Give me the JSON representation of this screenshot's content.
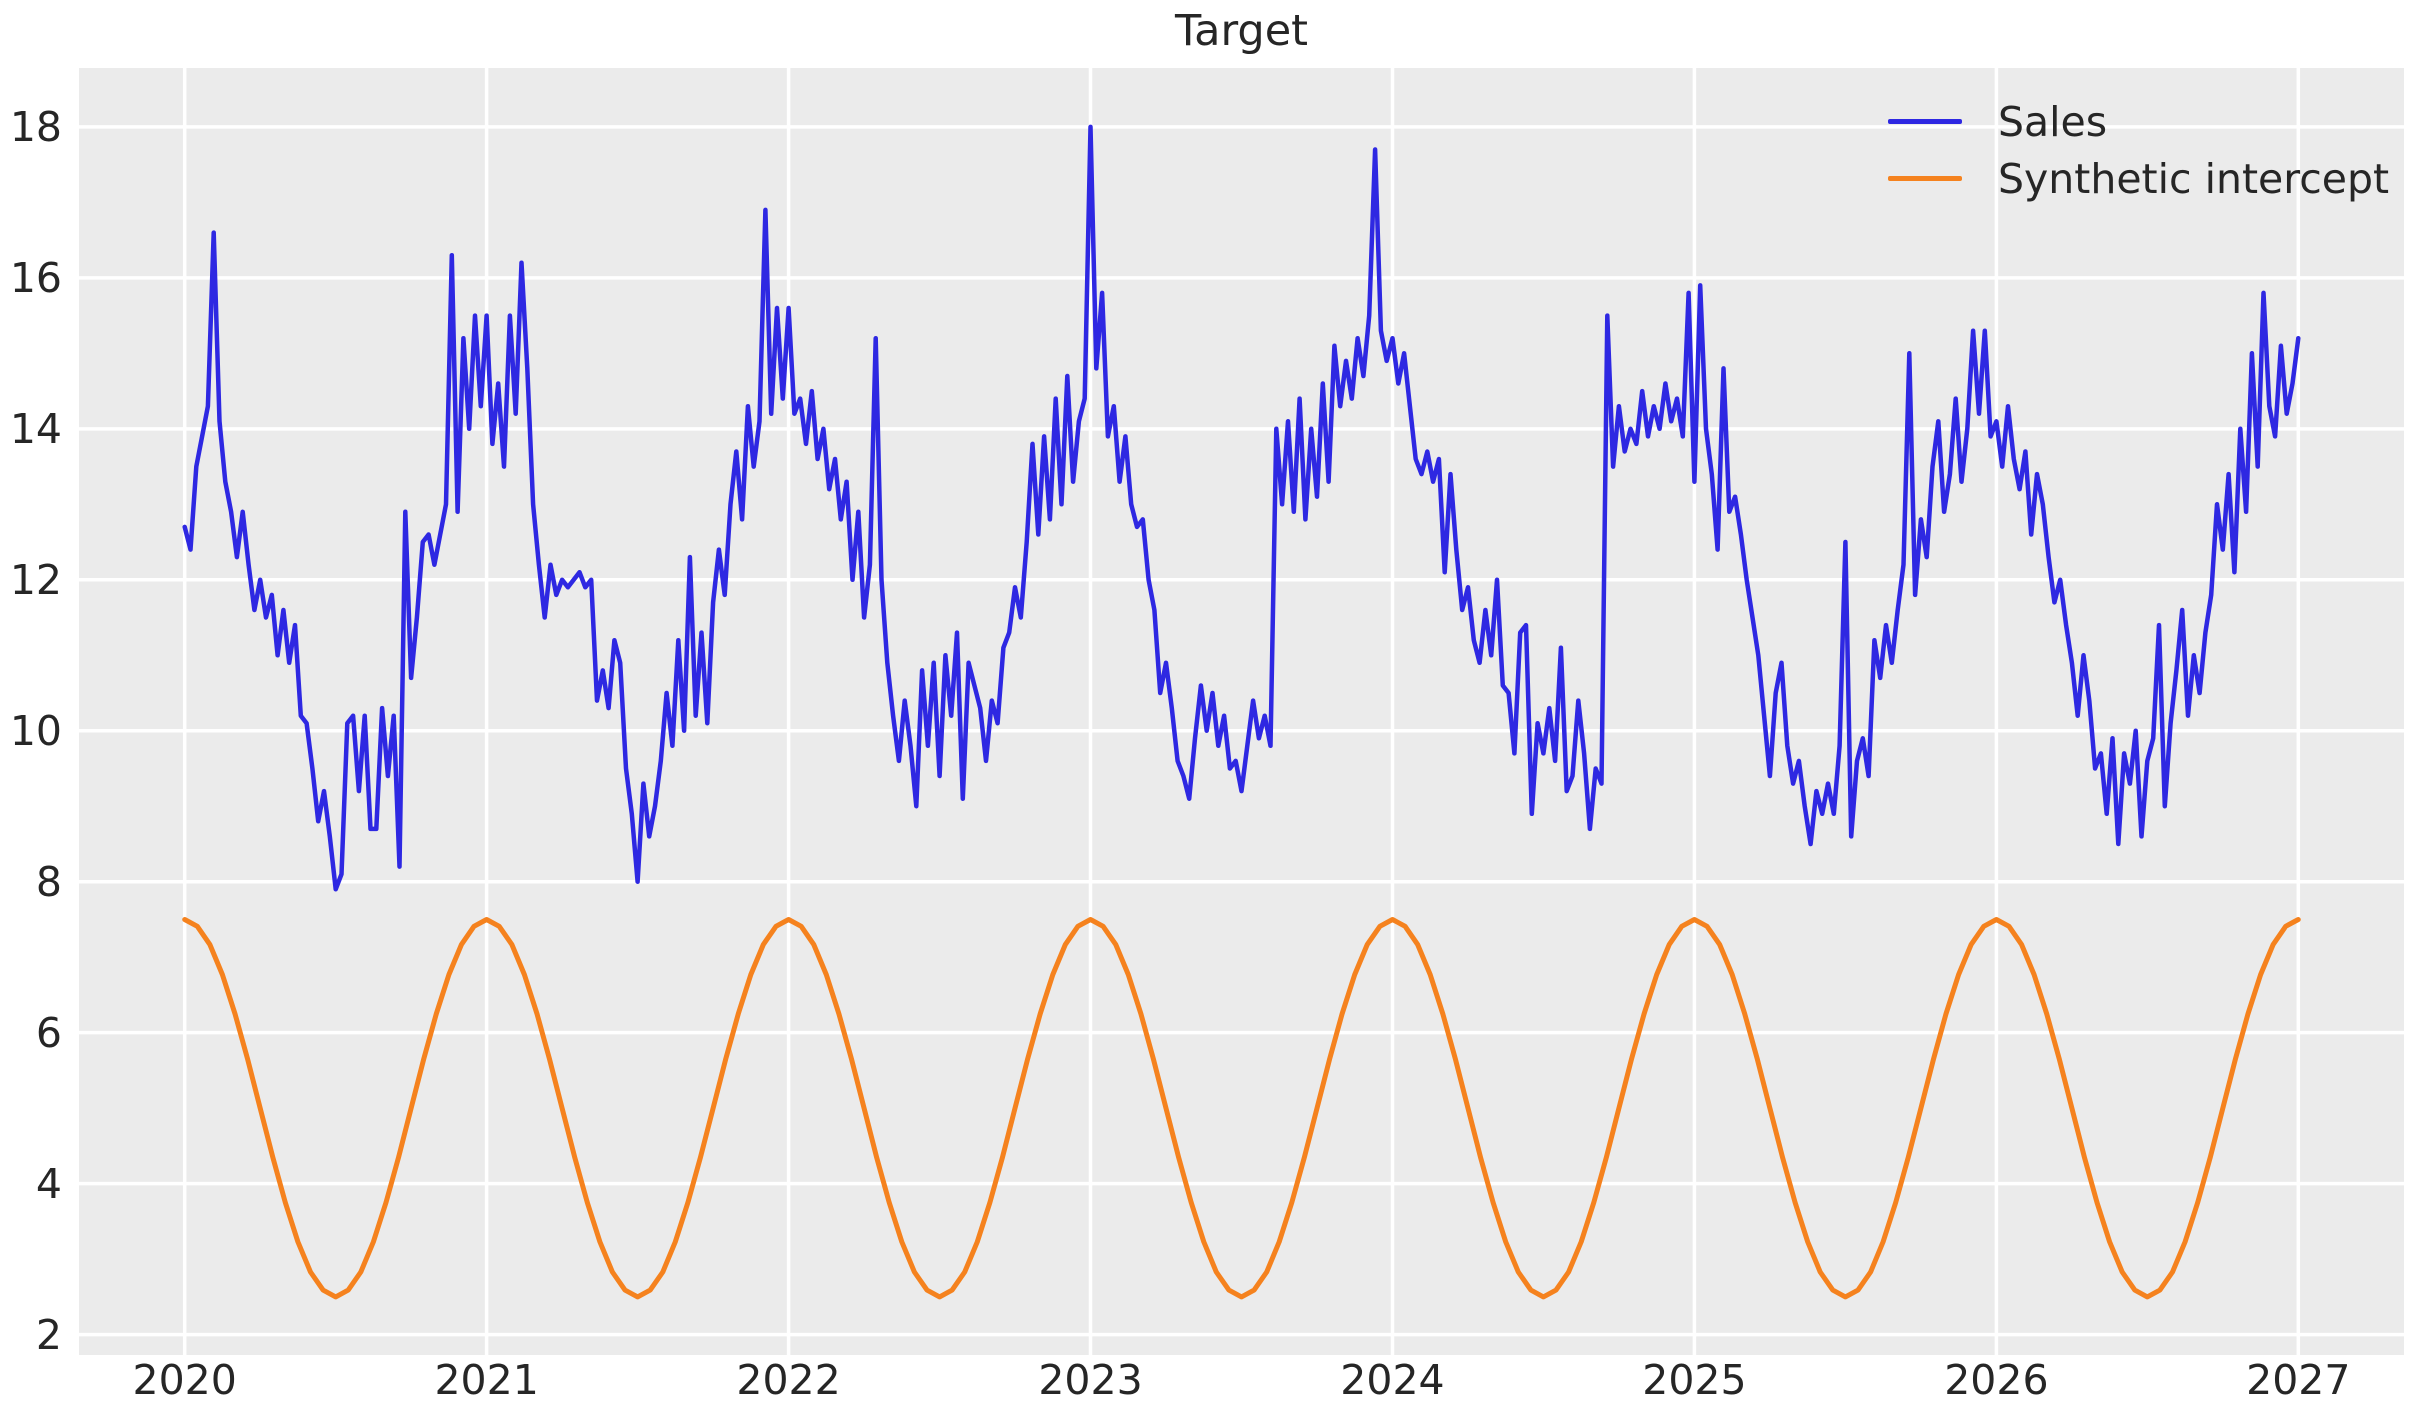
{
  "figure": {
    "title": "Target",
    "plot_background": "#ebebeb",
    "page_background": "#ffffff",
    "grid_color": "#ffffff",
    "text_color": "#262626"
  },
  "chart_data": {
    "type": "line",
    "title": "Target",
    "xlabel": "",
    "ylabel": "",
    "grid": true,
    "legend_position": "upper right",
    "xlim": [
      2019.65,
      2027.35
    ],
    "ylim": [
      1.73,
      18.78
    ],
    "x_ticks": [
      2020,
      2021,
      2022,
      2023,
      2024,
      2025,
      2026,
      2027
    ],
    "y_ticks": [
      2,
      4,
      6,
      8,
      10,
      12,
      14,
      16,
      18
    ],
    "series": [
      {
        "name": "Sales",
        "color": "#2e28e2",
        "line_width": 4.5,
        "x_start": 2020,
        "x_step": 0.01923077,
        "values": [
          12.7,
          12.4,
          13.5,
          13.9,
          14.3,
          16.6,
          14.1,
          13.3,
          12.9,
          12.3,
          12.9,
          12.2,
          11.6,
          12.0,
          11.5,
          11.8,
          11.0,
          11.6,
          10.9,
          11.4,
          10.2,
          10.1,
          9.5,
          8.8,
          9.2,
          8.6,
          7.9,
          8.1,
          10.1,
          10.2,
          9.2,
          10.2,
          8.7,
          8.7,
          10.3,
          9.4,
          10.2,
          8.2,
          12.9,
          10.7,
          11.5,
          12.5,
          12.6,
          12.2,
          12.6,
          13.0,
          16.3,
          12.9,
          15.2,
          14.0,
          15.5,
          14.3,
          15.5,
          13.8,
          14.6,
          13.5,
          15.5,
          14.2,
          16.2,
          14.8,
          13.0,
          12.2,
          11.5,
          12.2,
          11.8,
          12.0,
          11.9,
          12.0,
          12.1,
          11.9,
          12.0,
          10.4,
          10.8,
          10.3,
          11.2,
          10.9,
          9.5,
          8.9,
          8.0,
          9.3,
          8.6,
          9.0,
          9.6,
          10.5,
          9.8,
          11.2,
          10.0,
          12.3,
          10.2,
          11.3,
          10.1,
          11.7,
          12.4,
          11.8,
          13.0,
          13.7,
          12.8,
          14.3,
          13.5,
          14.1,
          16.9,
          14.2,
          15.6,
          14.4,
          15.6,
          14.2,
          14.4,
          13.8,
          14.5,
          13.6,
          14.0,
          13.2,
          13.6,
          12.8,
          13.3,
          12.0,
          12.9,
          11.5,
          12.2,
          15.2,
          12.0,
          10.9,
          10.2,
          9.6,
          10.4,
          9.8,
          9.0,
          10.8,
          9.8,
          10.9,
          9.4,
          11.0,
          10.2,
          11.3,
          9.1,
          10.9,
          10.6,
          10.3,
          9.6,
          10.4,
          10.1,
          11.1,
          11.3,
          11.9,
          11.5,
          12.5,
          13.8,
          12.6,
          13.9,
          12.8,
          14.4,
          13.0,
          14.7,
          13.3,
          14.1,
          14.4,
          18.0,
          14.8,
          15.8,
          13.9,
          14.3,
          13.3,
          13.9,
          13.0,
          12.7,
          12.8,
          12.0,
          11.6,
          10.5,
          10.9,
          10.3,
          9.6,
          9.4,
          9.1,
          9.9,
          10.6,
          10.0,
          10.5,
          9.8,
          10.2,
          9.5,
          9.6,
          9.2,
          9.8,
          10.4,
          9.9,
          10.2,
          9.8,
          14.0,
          13.0,
          14.1,
          12.9,
          14.4,
          12.8,
          14.0,
          13.1,
          14.6,
          13.3,
          15.1,
          14.3,
          14.9,
          14.4,
          15.2,
          14.7,
          15.5,
          17.7,
          15.3,
          14.9,
          15.2,
          14.6,
          15.0,
          14.3,
          13.6,
          13.4,
          13.7,
          13.3,
          13.6,
          12.1,
          13.4,
          12.4,
          11.6,
          11.9,
          11.2,
          10.9,
          11.6,
          11.0,
          12.0,
          10.6,
          10.5,
          9.7,
          11.3,
          11.4,
          8.9,
          10.1,
          9.7,
          10.3,
          9.6,
          11.1,
          9.2,
          9.4,
          10.4,
          9.7,
          8.7,
          9.5,
          9.3,
          15.5,
          13.5,
          14.3,
          13.7,
          14.0,
          13.8,
          14.5,
          13.9,
          14.3,
          14.0,
          14.6,
          14.1,
          14.4,
          13.9,
          15.8,
          13.3,
          15.9,
          14.0,
          13.4,
          12.4,
          14.8,
          12.9,
          13.1,
          12.6,
          12.0,
          11.5,
          11.0,
          10.2,
          9.4,
          10.5,
          10.9,
          9.8,
          9.3,
          9.6,
          9.0,
          8.5,
          9.2,
          8.9,
          9.3,
          8.9,
          9.8,
          12.5,
          8.6,
          9.6,
          9.9,
          9.4,
          11.2,
          10.7,
          11.4,
          10.9,
          11.6,
          12.2,
          15.0,
          11.8,
          12.8,
          12.3,
          13.5,
          14.1,
          12.9,
          13.4,
          14.4,
          13.3,
          14.0,
          15.3,
          14.2,
          15.3,
          13.9,
          14.1,
          13.5,
          14.3,
          13.6,
          13.2,
          13.7,
          12.6,
          13.4,
          13.0,
          12.3,
          11.7,
          12.0,
          11.4,
          10.9,
          10.2,
          11.0,
          10.4,
          9.5,
          9.7,
          8.9,
          9.9,
          8.5,
          9.7,
          9.3,
          10.0,
          8.6,
          9.6,
          9.9,
          11.4,
          9.0,
          10.1,
          10.8,
          11.6,
          10.2,
          11.0,
          10.5,
          11.3,
          11.8,
          13.0,
          12.4,
          13.4,
          12.1,
          14.0,
          12.9,
          15.0,
          13.5,
          15.8,
          14.3,
          13.9,
          15.1,
          14.2,
          14.6,
          15.2
        ]
      },
      {
        "name": "Synthetic intercept",
        "color": "#f5821e",
        "line_width": 5,
        "x_start": 2020,
        "x_step": 0.04166667,
        "values": [
          7.5,
          7.41,
          7.17,
          6.77,
          6.25,
          5.65,
          5.0,
          4.35,
          3.75,
          3.23,
          2.83,
          2.59,
          2.5,
          2.59,
          2.83,
          3.23,
          3.75,
          4.35,
          5.0,
          5.65,
          6.25,
          6.77,
          7.17,
          7.41,
          7.5,
          7.41,
          7.17,
          6.77,
          6.25,
          5.65,
          5.0,
          4.35,
          3.75,
          3.23,
          2.83,
          2.59,
          2.5,
          2.59,
          2.83,
          3.23,
          3.75,
          4.35,
          5.0,
          5.65,
          6.25,
          6.77,
          7.17,
          7.41,
          7.5,
          7.41,
          7.17,
          6.77,
          6.25,
          5.65,
          5.0,
          4.35,
          3.75,
          3.23,
          2.83,
          2.59,
          2.5,
          2.59,
          2.83,
          3.23,
          3.75,
          4.35,
          5.0,
          5.65,
          6.25,
          6.77,
          7.17,
          7.41,
          7.5,
          7.41,
          7.17,
          6.77,
          6.25,
          5.65,
          5.0,
          4.35,
          3.75,
          3.23,
          2.83,
          2.59,
          2.5,
          2.59,
          2.83,
          3.23,
          3.75,
          4.35,
          5.0,
          5.65,
          6.25,
          6.77,
          7.17,
          7.41,
          7.5,
          7.41,
          7.17,
          6.77,
          6.25,
          5.65,
          5.0,
          4.35,
          3.75,
          3.23,
          2.83,
          2.59,
          2.5,
          2.59,
          2.83,
          3.23,
          3.75,
          4.35,
          5.0,
          5.65,
          6.25,
          6.77,
          7.17,
          7.41,
          7.5,
          7.41,
          7.17,
          6.77,
          6.25,
          5.65,
          5.0,
          4.35,
          3.75,
          3.23,
          2.83,
          2.59,
          2.5,
          2.59,
          2.83,
          3.23,
          3.75,
          4.35,
          5.0,
          5.65,
          6.25,
          6.77,
          7.17,
          7.41,
          7.5,
          7.41,
          7.17,
          6.77,
          6.25,
          5.65,
          5.0,
          4.35,
          3.75,
          3.23,
          2.83,
          2.59,
          2.5,
          2.59,
          2.83,
          3.23,
          3.75,
          4.35,
          5.0,
          5.65,
          6.25,
          6.77,
          7.17,
          7.41,
          7.5
        ]
      }
    ]
  }
}
